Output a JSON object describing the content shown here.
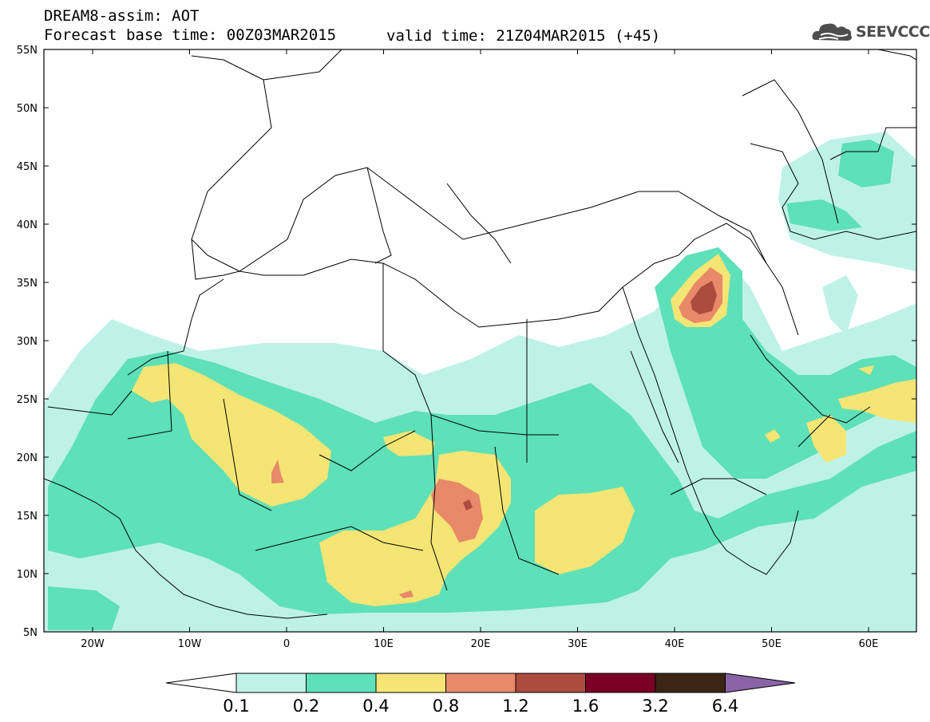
{
  "header": {
    "title": "DREAM8-assim: AOT",
    "base_time": "Forecast base time: 00Z03MAR2015",
    "valid_time": "valid time: 21Z04MAR2015 (+45)"
  },
  "logo": {
    "text": "SEEVCCC",
    "icon": "cloud-icon"
  },
  "map": {
    "lat_labels": [
      "55N",
      "50N",
      "45N",
      "40N",
      "35N",
      "30N",
      "25N",
      "20N",
      "15N",
      "10N",
      "5N"
    ],
    "lon_labels": [
      "20W",
      "10W",
      "0",
      "10E",
      "20E",
      "30E",
      "40E",
      "50E",
      "60E"
    ],
    "lon_range": [
      -25,
      65
    ],
    "lat_range": [
      5,
      55
    ]
  },
  "colorbar": {
    "levels": [
      "0.1",
      "0.2",
      "0.4",
      "0.8",
      "1.2",
      "1.6",
      "3.2",
      "6.4"
    ],
    "colors": [
      "#ffffff",
      "#bff2e7",
      "#5ee0b8",
      "#f5e574",
      "#e8896a",
      "#ac4c3e",
      "#7a0025",
      "#3b2513",
      "#8a64a6"
    ]
  }
}
